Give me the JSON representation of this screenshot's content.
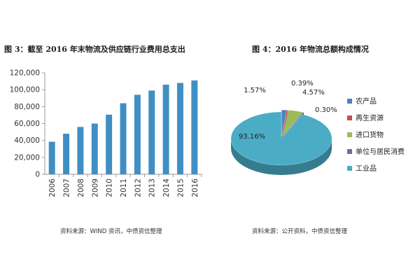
{
  "chart_data": [
    {
      "type": "bar",
      "title": "图 3：截至 2016 年末物流及供应链行业费用总支出",
      "categories": [
        "2006",
        "2007",
        "2008",
        "2009",
        "2010",
        "2011",
        "2012",
        "2013",
        "2014",
        "2015",
        "2016"
      ],
      "values": [
        38500,
        48000,
        56000,
        60000,
        70500,
        84000,
        94000,
        99000,
        106000,
        108000,
        111000
      ],
      "ylim": [
        0,
        120000
      ],
      "yticks": [
        "0",
        "20,000",
        "40,000",
        "60,000",
        "80,000",
        "100,000",
        "120,000"
      ],
      "color": "#3f8fc4",
      "grid": false,
      "source": "资料来源：WIND 资讯，中债资信整理"
    },
    {
      "type": "pie",
      "title": "图 4：2016 年物流总额构成情况",
      "labels": [
        "农产品",
        "再生资源",
        "进口货物",
        "单位与居民消费",
        "工业品"
      ],
      "values": [
        1.57,
        0.39,
        4.57,
        0.3,
        93.16
      ],
      "value_labels": [
        "1.57%",
        "0.39%",
        "4.57%",
        "0.30%",
        "93.16%"
      ],
      "colors": [
        "#4f81bd",
        "#c0504d",
        "#9bbb59",
        "#8064a2",
        "#4bacc6"
      ],
      "style": "3d",
      "legend": "right",
      "source": "资料来源：公开资料，中债资信整理"
    }
  ]
}
